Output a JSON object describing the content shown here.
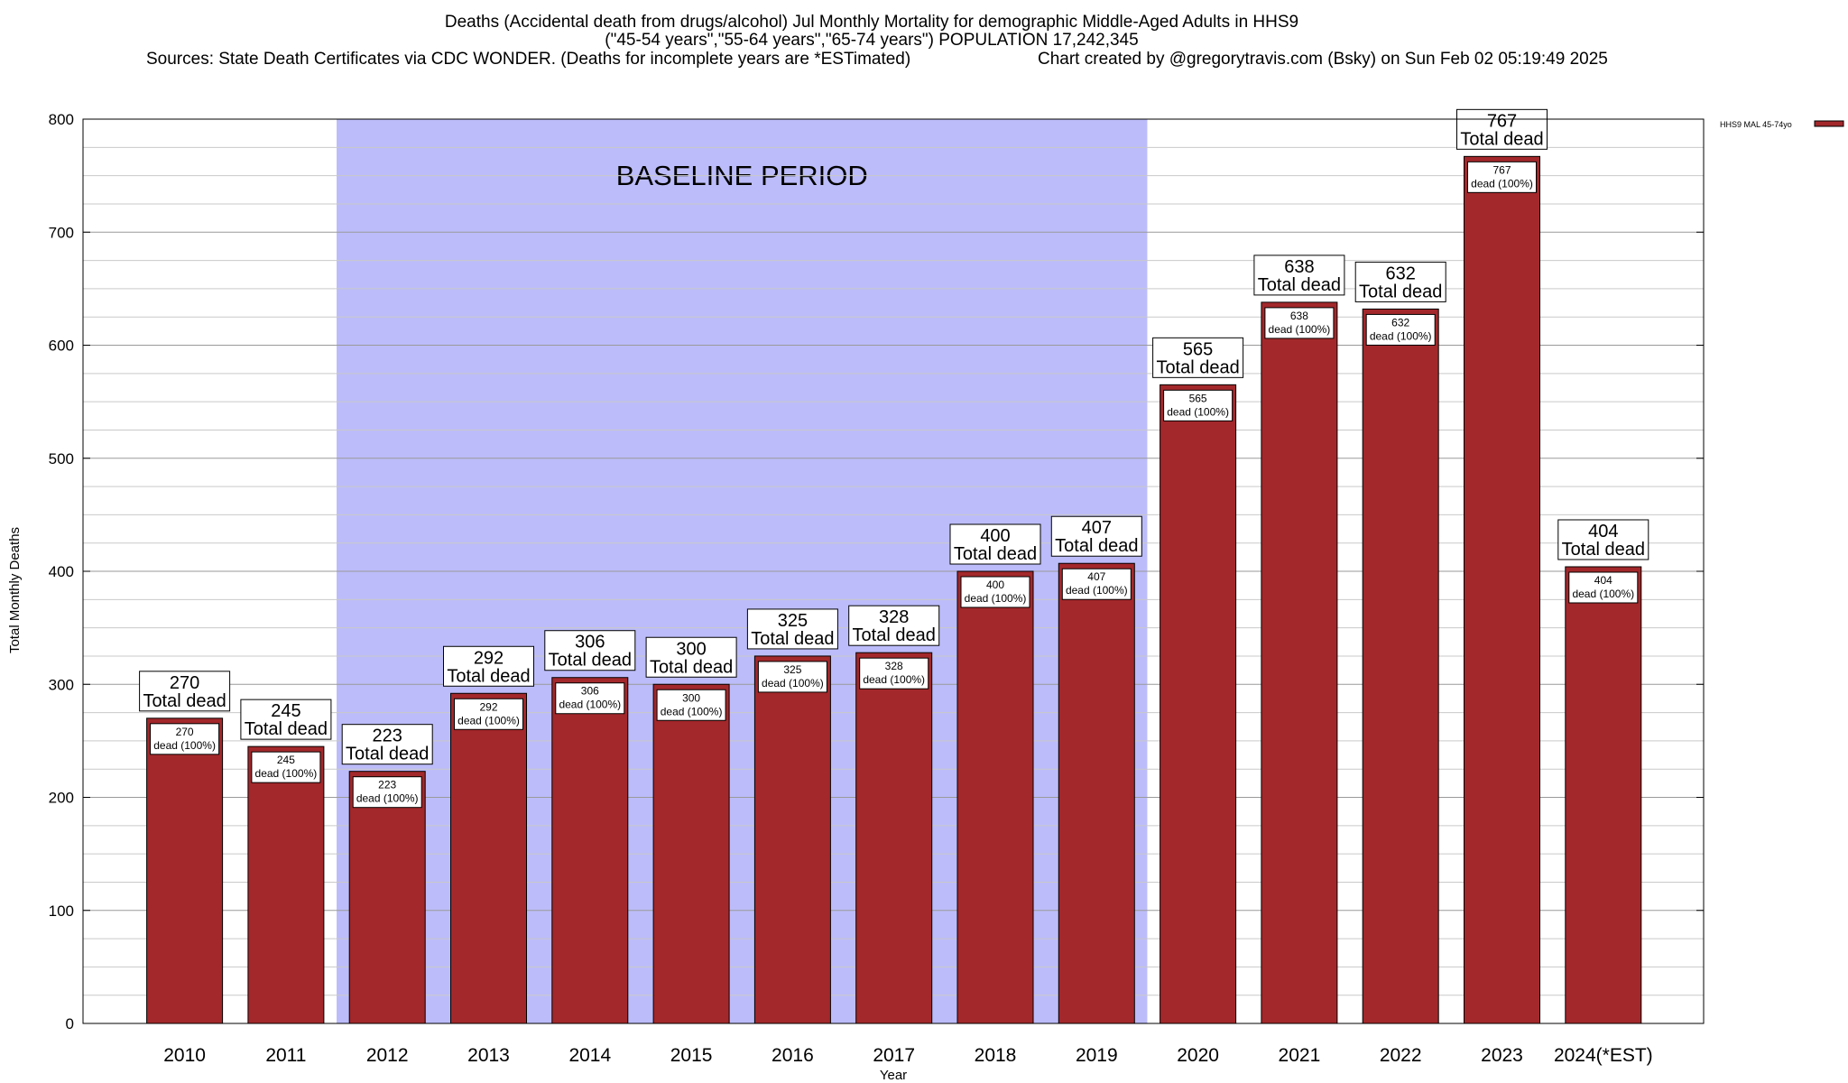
{
  "chart_data": {
    "type": "bar",
    "title_lines": [
      "Deaths (Accidental death from drugs/alcohol) Jul Monthly Mortality for demographic Middle-Aged Adults in HHS9",
      "(\"45-54 years\",\"55-64 years\",\"65-74 years\") POPULATION 17,242,345"
    ],
    "source_text": "Sources: State Death Certificates via CDC WONDER. (Deaths for incomplete years are *ESTimated)",
    "credit_text": "Chart created by @gregorytravis.com (Bsky) on Sun Feb 02 05:19:49 2025",
    "xlabel": "Year",
    "ylabel": "Total Monthly Deaths",
    "ylim": [
      0,
      800
    ],
    "y_ticks": [
      0,
      100,
      200,
      300,
      400,
      500,
      600,
      700,
      800
    ],
    "grid": true,
    "legend_position": "top-right",
    "categories": [
      "2010",
      "2011",
      "2012",
      "2013",
      "2014",
      "2015",
      "2016",
      "2017",
      "2018",
      "2019",
      "2020",
      "2021",
      "2022",
      "2023",
      "2024(*EST)"
    ],
    "series": [
      {
        "name": "HHS9 MAL 45-74yo",
        "color": "#a3282b",
        "values": [
          270,
          245,
          223,
          292,
          306,
          300,
          325,
          328,
          400,
          407,
          565,
          638,
          632,
          767,
          404
        ]
      }
    ],
    "total_label_text": "Total dead",
    "inner_label_text": "dead (100%)",
    "baseline": {
      "label": "BASELINE PERIOD",
      "start_category": "2012",
      "end_category": "2019",
      "color": "#bcbcfa"
    }
  }
}
